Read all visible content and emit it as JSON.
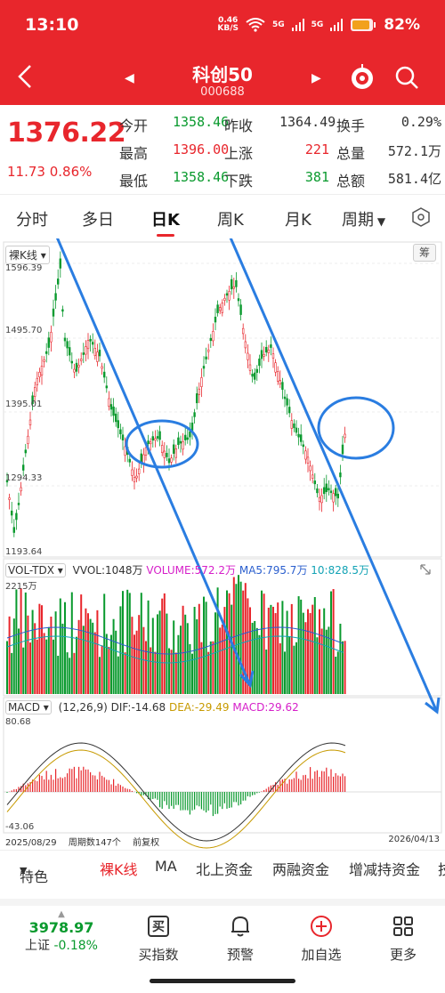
{
  "status": {
    "time": "13:10",
    "net_speed": "0.46",
    "net_unit": "KB/S",
    "sig1": "5G",
    "sig2": "5G",
    "battery": "82%"
  },
  "header": {
    "title": "科创50",
    "code": "000688"
  },
  "quote": {
    "price": "1376.22",
    "change": "11.73 0.86%",
    "rows": [
      {
        "l1": "今开",
        "v1": "1358.46",
        "l2": "昨收",
        "v2": "1364.49",
        "l3": "换手",
        "v3": "0.29%"
      },
      {
        "l1": "最高",
        "v1": "1396.00",
        "l2": "上涨",
        "v2": "221",
        "l3": "总量",
        "v3": "572.1万"
      },
      {
        "l1": "最低",
        "v1": "1358.46",
        "l2": "下跌",
        "v2": "381",
        "l3": "总额",
        "v3": "581.4亿"
      }
    ]
  },
  "tabs": [
    "分时",
    "多日",
    "日K",
    "周K",
    "月K",
    "周期"
  ],
  "chart": {
    "kline_label": "裸K线",
    "chou": "筹",
    "y_labels": [
      "1596.39",
      "1495.70",
      "1395.01",
      "1294.33",
      "1193.64"
    ],
    "vol_label": "VOL-TDX",
    "vvol": "VVOL:1048万",
    "volume": "VOLUME:572.2万",
    "ma5": "MA5:795.7万",
    "ma10": "10:828.5万",
    "vol_max": "2215万",
    "macd_label": "MACD",
    "macd_params": "(12,26,9)",
    "dif": "DIF:-14.68",
    "dea": "DEA:-29.49",
    "macd_val": "MACD:29.62",
    "macd_max": "80.68",
    "macd_min": "-43.06",
    "start_date": "2025/08/29",
    "period_count": "周期数147个",
    "adjust": "前复权",
    "end_date": "2026/04/13"
  },
  "bottom_tabs": [
    "特色",
    "裸K线",
    "MA",
    "北上资金",
    "两融资金",
    "增减持资金",
    "技"
  ],
  "nav": {
    "index_value": "3978.97",
    "index_name": "上证",
    "index_change": "-0.18%",
    "items": [
      "买指数",
      "预警",
      "加自选",
      "更多"
    ],
    "buy_glyph": "买"
  },
  "colors": {
    "brand_red": "#e8262c",
    "down_green": "#0a9a2e",
    "annotation_blue": "#2a7de1"
  }
}
